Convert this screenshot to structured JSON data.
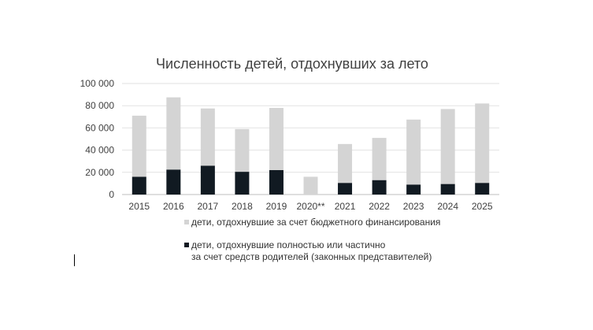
{
  "chart_data": {
    "type": "bar",
    "stacked": true,
    "title": "Численность детей, отдохнувших за лето",
    "categories": [
      "2015",
      "2016",
      "2017",
      "2018",
      "2019",
      "2020**",
      "2021",
      "2022",
      "2023",
      "2024",
      "2025"
    ],
    "series": [
      {
        "name": "дети, отдохнувшие полностью или частично за счет средств родителей (законных представителей)",
        "color": "#111a22",
        "values": [
          16000,
          22500,
          26000,
          20500,
          22000,
          0,
          10500,
          13000,
          9000,
          9500,
          10500
        ]
      },
      {
        "name": "дети, отдохнувшие за счет бюджетного финансирования",
        "color": "#d4d4d4",
        "values": [
          55000,
          65000,
          51500,
          38500,
          56000,
          16000,
          35000,
          38000,
          58500,
          67500,
          71500
        ]
      }
    ],
    "y_ticks": [
      "0",
      "20 000",
      "40 000",
      "60 000",
      "80 000",
      "100 000"
    ],
    "ylim": [
      0,
      100000
    ],
    "grid": true,
    "legend_position": "bottom",
    "legend": {
      "budget_label": "дети, отдохнувшие за счет бюджетного финансирования",
      "parents_label_line1": "дети, отдохнувшие полностью или частично",
      "parents_label_line2": "за счет средств родителей (законных представителей)"
    }
  }
}
